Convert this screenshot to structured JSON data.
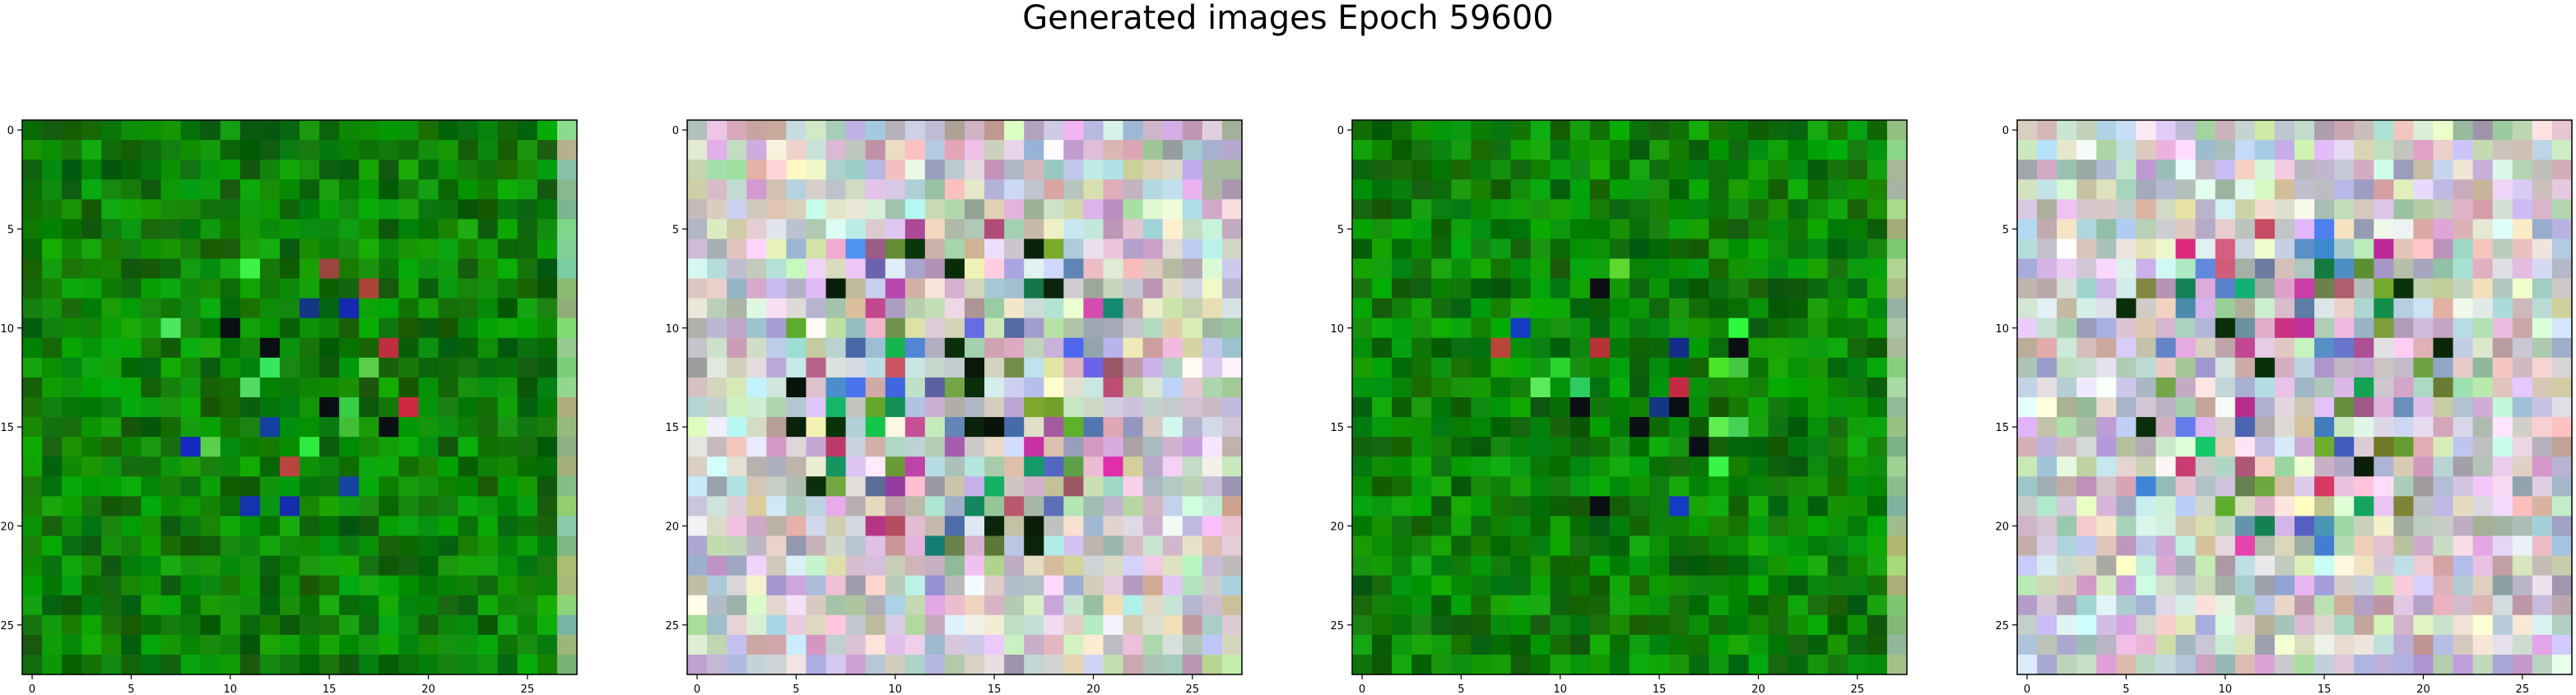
{
  "figure": {
    "title": "Generated images Epoch 59600"
  },
  "chart_data": [
    {
      "type": "heatmap",
      "title": "",
      "rows": 28,
      "cols": 28,
      "xticks": [
        0,
        5,
        10,
        15,
        20,
        25
      ],
      "yticks": [
        0,
        5,
        10,
        15,
        20,
        25
      ],
      "xtick_labels": [
        "0",
        "5",
        "10",
        "15",
        "20",
        "25"
      ],
      "ytick_labels": [
        "0",
        "5",
        "10",
        "15",
        "20",
        "25"
      ],
      "palette": "green",
      "seed": 11,
      "dominant_color": "#1f7f1f"
    },
    {
      "type": "heatmap",
      "title": "",
      "rows": 28,
      "cols": 28,
      "xticks": [
        0,
        5,
        10,
        15,
        20,
        25
      ],
      "yticks": [
        0,
        5,
        10,
        15,
        20,
        25
      ],
      "xtick_labels": [
        "0",
        "5",
        "10",
        "15",
        "20",
        "25"
      ],
      "ytick_labels": [
        "0",
        "5",
        "10",
        "15",
        "20",
        "25"
      ],
      "palette": "pastel",
      "seed": 23,
      "dominant_color": "#c8c8c8"
    },
    {
      "type": "heatmap",
      "title": "",
      "rows": 28,
      "cols": 28,
      "xticks": [
        0,
        5,
        10,
        15,
        20,
        25
      ],
      "yticks": [
        0,
        5,
        10,
        15,
        20,
        25
      ],
      "xtick_labels": [
        "0",
        "5",
        "10",
        "15",
        "20",
        "25"
      ],
      "ytick_labels": [
        "0",
        "5",
        "10",
        "15",
        "20",
        "25"
      ],
      "palette": "green",
      "seed": 37,
      "dominant_color": "#1a7a1a"
    },
    {
      "type": "heatmap",
      "title": "",
      "rows": 28,
      "cols": 28,
      "xticks": [
        0,
        5,
        10,
        15,
        20,
        25
      ],
      "yticks": [
        0,
        5,
        10,
        15,
        20,
        25
      ],
      "xtick_labels": [
        "0",
        "5",
        "10",
        "15",
        "20",
        "25"
      ],
      "ytick_labels": [
        "0",
        "5",
        "10",
        "15",
        "20",
        "25"
      ],
      "palette": "pastel",
      "seed": 51,
      "dominant_color": "#cccccc"
    }
  ]
}
